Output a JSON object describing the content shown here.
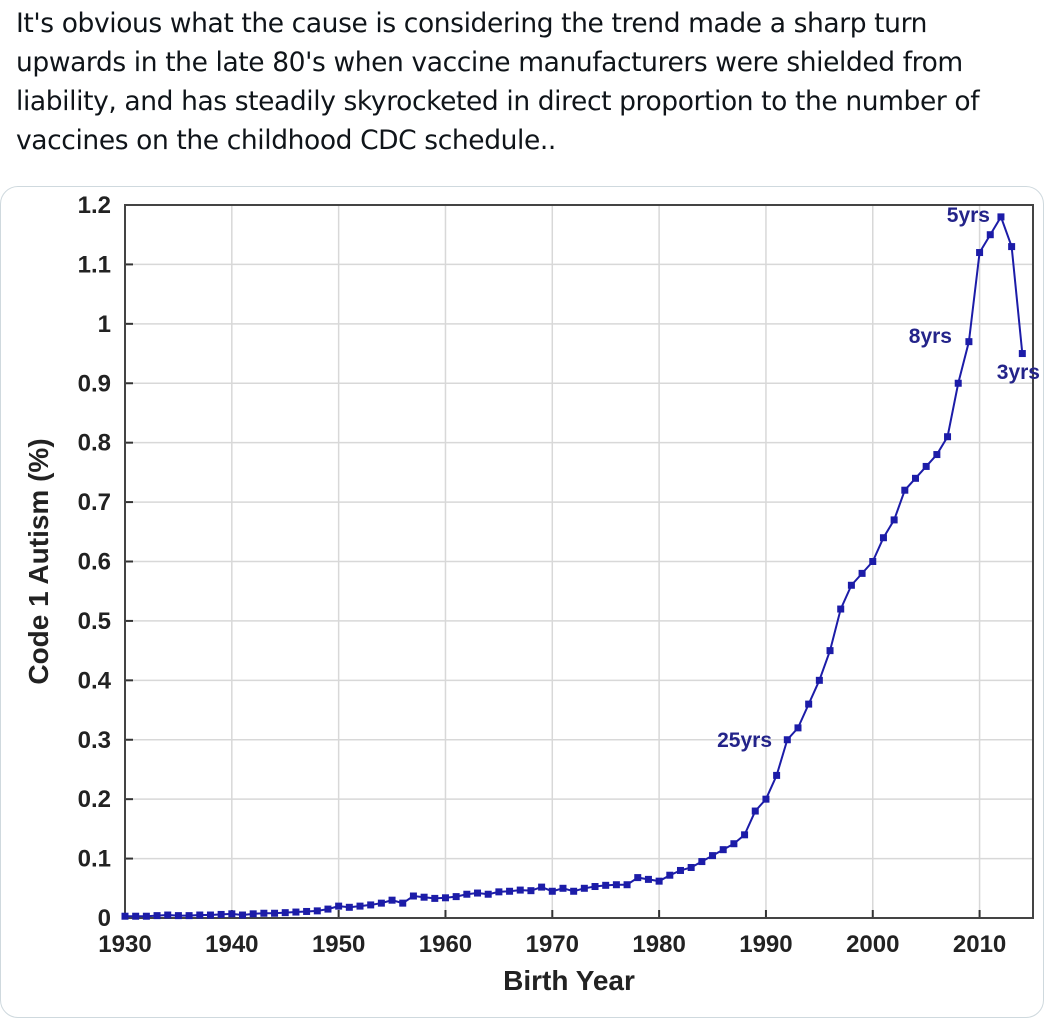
{
  "post": {
    "text": "It's obvious what the cause is considering the trend made a sharp turn upwards in the late 80's when vaccine manufacturers were shielded from liability, and has steadily skyrocketed in direct proportion to the number of vaccines on the childhood CDC schedule.."
  },
  "chart_data": {
    "type": "line",
    "x_label": "Birth Year",
    "y_label": "Code 1 Autism (%)",
    "x": [
      1930,
      1931,
      1932,
      1933,
      1934,
      1935,
      1936,
      1937,
      1938,
      1939,
      1940,
      1941,
      1942,
      1943,
      1944,
      1945,
      1946,
      1947,
      1948,
      1949,
      1950,
      1951,
      1952,
      1953,
      1954,
      1955,
      1956,
      1957,
      1958,
      1959,
      1960,
      1961,
      1962,
      1963,
      1964,
      1965,
      1966,
      1967,
      1968,
      1969,
      1970,
      1971,
      1972,
      1973,
      1974,
      1975,
      1976,
      1977,
      1978,
      1979,
      1980,
      1981,
      1982,
      1983,
      1984,
      1985,
      1986,
      1987,
      1988,
      1989,
      1990,
      1991,
      1992,
      1993,
      1994,
      1995,
      1996,
      1997,
      1998,
      1999,
      2000,
      2001,
      2002,
      2003,
      2004,
      2005,
      2006,
      2007,
      2008,
      2009,
      2010,
      2011,
      2012,
      2013,
      2014
    ],
    "series": [
      {
        "name": "Code 1 Autism",
        "color": "#1c1ca8",
        "values": [
          0.003,
          0.003,
          0.003,
          0.004,
          0.005,
          0.004,
          0.004,
          0.005,
          0.005,
          0.006,
          0.007,
          0.005,
          0.007,
          0.008,
          0.008,
          0.009,
          0.01,
          0.011,
          0.012,
          0.015,
          0.02,
          0.018,
          0.02,
          0.022,
          0.025,
          0.03,
          0.025,
          0.037,
          0.035,
          0.033,
          0.034,
          0.036,
          0.04,
          0.042,
          0.04,
          0.044,
          0.045,
          0.047,
          0.046,
          0.052,
          0.045,
          0.05,
          0.045,
          0.05,
          0.053,
          0.055,
          0.056,
          0.056,
          0.068,
          0.065,
          0.062,
          0.072,
          0.08,
          0.085,
          0.095,
          0.105,
          0.115,
          0.125,
          0.14,
          0.18,
          0.2,
          0.24,
          0.3,
          0.32,
          0.36,
          0.4,
          0.45,
          0.52,
          0.56,
          0.58,
          0.6,
          0.64,
          0.67,
          0.72,
          0.74,
          0.76,
          0.78,
          0.81,
          0.9,
          0.97,
          1.12,
          1.15,
          1.18,
          1.13,
          0.95
        ]
      }
    ],
    "annotations": [
      "25yrs",
      "8yrs",
      "5yrs",
      "3yrs"
    ],
    "xlim": [
      1930,
      2015
    ],
    "ylim": [
      0,
      1.2
    ],
    "xticks": [
      1930,
      1940,
      1950,
      1960,
      1970,
      1980,
      1990,
      2000,
      2010
    ],
    "yticks": [
      0,
      0.1,
      0.2,
      0.3,
      0.4,
      0.5,
      0.6,
      0.7,
      0.8,
      0.9,
      1,
      1.1,
      1.2
    ],
    "grid": true
  }
}
